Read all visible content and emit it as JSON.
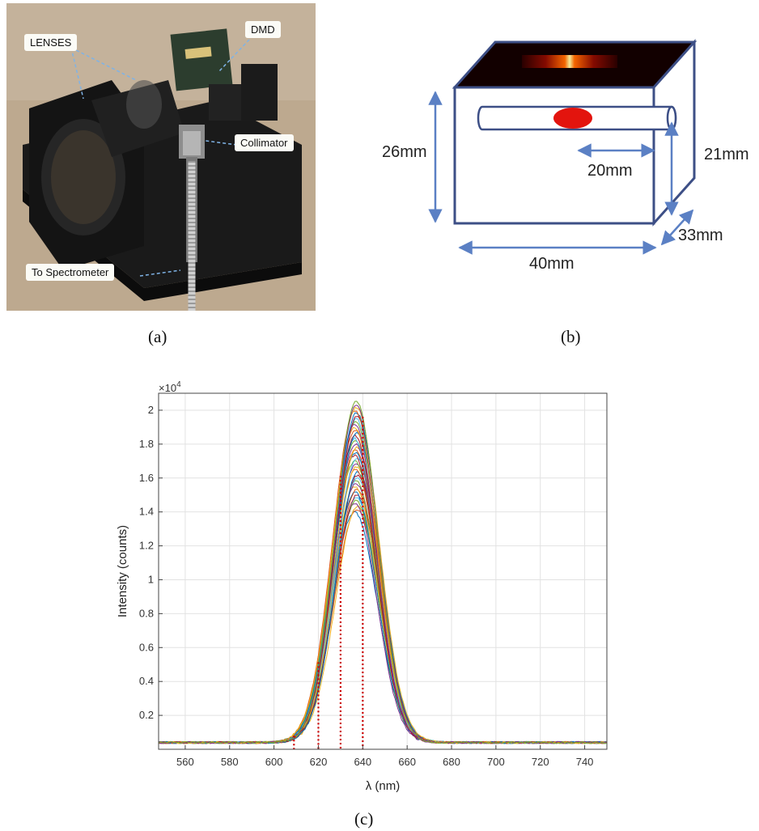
{
  "panel_a": {
    "caption": "(a)",
    "labels": {
      "lenses": "LENSES",
      "dmd": "DMD",
      "collimator": "Collimator",
      "to_spectrometer": "To Spectrometer"
    }
  },
  "panel_b": {
    "caption": "(b)",
    "dims": {
      "height": "26mm",
      "inner_height": "21mm",
      "inner_length": "20mm",
      "depth": "33mm",
      "width": "40mm"
    },
    "colors": {
      "box_edge": "#3d4f86",
      "arrow": "#5b80c4",
      "ellipse": "#e3140e"
    }
  },
  "panel_c": {
    "caption": "(c)",
    "exponent_label": "×10",
    "exponent_power": "4",
    "chart_data": {
      "type": "line",
      "xlabel": "λ (nm)",
      "ylabel": "Intensity (counts)",
      "xlim": [
        548,
        750
      ],
      "ylim": [
        0.0,
        2.1
      ],
      "x_ticks": [
        560,
        580,
        600,
        620,
        640,
        660,
        680,
        700,
        720,
        740
      ],
      "y_ticks": [
        0.2,
        0.4,
        0.6,
        0.8,
        1.0,
        1.2,
        1.4,
        1.6,
        1.8,
        2.0
      ],
      "y_tick_labels": [
        "0.2",
        "0.4",
        "0.6",
        "0.8",
        "1",
        "1.2",
        "1.4",
        "1.6",
        "1.8",
        "2"
      ],
      "grid": true,
      "spectra": {
        "peak_wavelength": 637,
        "sigma": 10,
        "baseline": 0.04,
        "peak_min": 1.4,
        "peak_max": 2.05,
        "count": 40,
        "colors": [
          "#0072bd",
          "#d95319",
          "#edb120",
          "#7e2f8e",
          "#77ac30",
          "#4dbeee",
          "#a2142f"
        ]
      },
      "markers": {
        "x": [
          609,
          620,
          630,
          640
        ],
        "color": "#cc0000",
        "style": "dotted"
      }
    }
  }
}
